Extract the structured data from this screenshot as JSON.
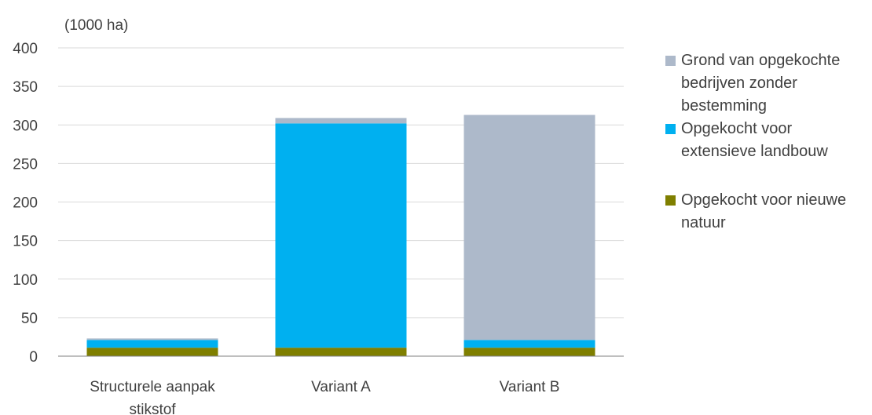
{
  "chart_data": {
    "type": "bar",
    "stacked": true,
    "unit_label": "(1000 ha)",
    "xlabel": "",
    "ylabel": "",
    "ylim": [
      0,
      400
    ],
    "yticks": [
      0,
      50,
      100,
      150,
      200,
      250,
      300,
      350,
      400
    ],
    "grid": true,
    "legend_position": "right",
    "categories": [
      "Structurele aanpak stikstof",
      "Variant A",
      "Variant B"
    ],
    "series": [
      {
        "name": "Opgekocht voor nieuwe natuur",
        "color": "#7f7f00",
        "values": [
          11,
          11,
          11
        ]
      },
      {
        "name": "Opgekocht voor extensieve landbouw",
        "color": "#00b0f0",
        "values": [
          10,
          291,
          10
        ]
      },
      {
        "name": "Grond van opgekochte bedrijven zonder bestemming",
        "color": "#adb9ca",
        "values": [
          2,
          7,
          292
        ]
      }
    ]
  }
}
